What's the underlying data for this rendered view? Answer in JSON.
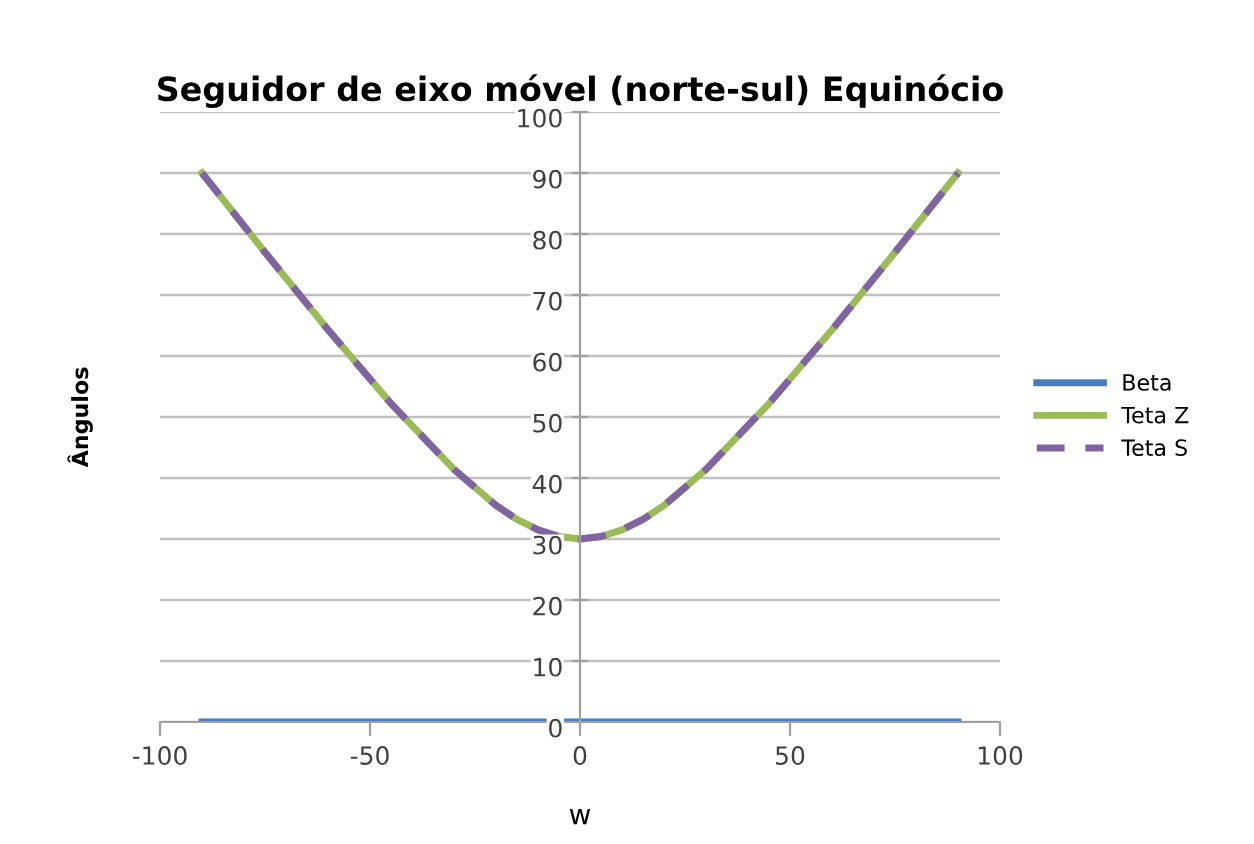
{
  "chart_data": {
    "type": "line",
    "title": "Seguidor de eixo móvel (norte-sul) Equinócio",
    "xlabel": "w",
    "ylabel": "Ângulos",
    "x": [
      -90,
      -75,
      -60,
      -45,
      -30,
      -20,
      -15,
      -10,
      -5,
      0,
      5,
      10,
      15,
      20,
      30,
      45,
      60,
      75,
      90
    ],
    "series": [
      {
        "name": "Beta",
        "color": "#4a7ebb",
        "line_style": "solid",
        "values": [
          0,
          0,
          0,
          0,
          0,
          0,
          0,
          0,
          0,
          0,
          0,
          0,
          0,
          0,
          0,
          0,
          0,
          0,
          0
        ]
      },
      {
        "name": "Teta Z",
        "color": "#9bbb59",
        "line_style": "solid",
        "values": [
          90,
          77,
          64.3,
          52.2,
          41.4,
          35.5,
          33.2,
          31.5,
          30.4,
          30,
          30.4,
          31.5,
          33.2,
          35.5,
          41.4,
          52.2,
          64.3,
          77,
          90
        ]
      },
      {
        "name": "Teta S",
        "color": "#8064a2",
        "line_style": "dashed",
        "values": [
          90,
          77,
          64.3,
          52.2,
          41.4,
          35.5,
          33.2,
          31.5,
          30.4,
          30,
          30.4,
          31.5,
          33.2,
          35.5,
          41.4,
          52.2,
          64.3,
          77,
          90
        ]
      }
    ],
    "xlim": [
      -100,
      100
    ],
    "xticks": [
      -100,
      -50,
      0,
      50,
      100
    ],
    "ylim": [
      0,
      100
    ],
    "yticks": [
      0,
      10,
      20,
      30,
      40,
      50,
      60,
      70,
      80,
      90,
      100
    ],
    "grid": "y",
    "legend": "right",
    "marker": "none"
  }
}
